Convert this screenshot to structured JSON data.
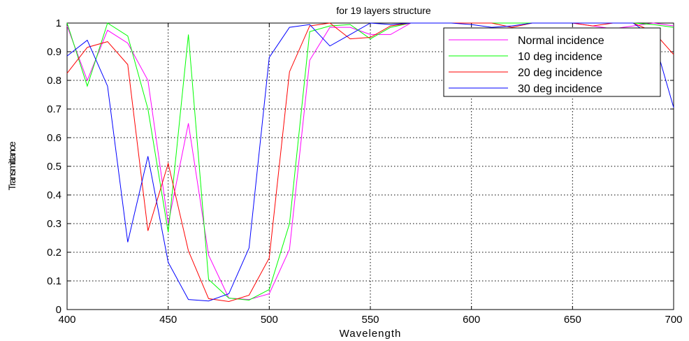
{
  "chart_data": {
    "type": "line",
    "title": "for 19 layers structure",
    "xlabel": "Wavelength",
    "ylabel": "Transmittance",
    "xlim": [
      400,
      700
    ],
    "ylim": [
      0,
      1
    ],
    "xticks": [
      400,
      450,
      500,
      550,
      600,
      650,
      700
    ],
    "yticks": [
      0,
      0.1,
      0.2,
      0.3,
      0.4,
      0.5,
      0.6,
      0.7,
      0.8,
      0.9,
      1
    ],
    "ytick_labels": [
      "0",
      "0.1",
      "0.2",
      "0.3",
      "0.4",
      "0.5",
      "0.6",
      "0.7",
      "0.8",
      "0.9",
      "1"
    ],
    "grid": true,
    "legend_position": "top-right",
    "x": [
      400,
      410,
      420,
      430,
      440,
      450,
      460,
      470,
      480,
      490,
      500,
      510,
      520,
      530,
      540,
      550,
      560,
      570,
      580,
      590,
      600,
      610,
      620,
      630,
      640,
      650,
      660,
      670,
      680,
      690,
      700
    ],
    "series": [
      {
        "name": "Normal incidence",
        "color": "#ff00ff",
        "values": [
          0.99,
          0.8,
          0.975,
          0.93,
          0.8,
          0.3,
          0.65,
          0.19,
          0.04,
          0.035,
          0.055,
          0.21,
          0.87,
          0.985,
          0.985,
          0.96,
          0.96,
          1.0,
          1.0,
          1.0,
          1.0,
          1.0,
          1.0,
          1.0,
          1.0,
          1.0,
          0.99,
          0.98,
          0.99,
          1.0,
          0.99
        ]
      },
      {
        "name": "10 deg incidence",
        "color": "#00ff00",
        "values": [
          1.0,
          0.78,
          1.0,
          0.955,
          0.7,
          0.27,
          0.96,
          0.105,
          0.04,
          0.033,
          0.07,
          0.3,
          0.97,
          0.99,
          0.995,
          0.945,
          0.985,
          1.0,
          1.0,
          1.0,
          1.0,
          1.0,
          1.0,
          1.0,
          1.0,
          1.0,
          1.0,
          1.0,
          1.0,
          0.995,
          0.985
        ]
      },
      {
        "name": "20 deg incidence",
        "color": "#ff0000",
        "values": [
          0.825,
          0.915,
          0.935,
          0.855,
          0.275,
          0.51,
          0.205,
          0.038,
          0.028,
          0.05,
          0.18,
          0.83,
          0.99,
          1.0,
          0.945,
          0.95,
          0.99,
          1.0,
          1.0,
          1.0,
          1.0,
          1.0,
          0.985,
          1.0,
          1.0,
          1.0,
          0.99,
          1.0,
          1.0,
          0.97,
          0.89
        ]
      },
      {
        "name": "30 deg incidence",
        "color": "#0000ff",
        "values": [
          0.885,
          0.94,
          0.78,
          0.235,
          0.535,
          0.165,
          0.035,
          0.03,
          0.055,
          0.215,
          0.88,
          0.985,
          0.995,
          0.92,
          0.96,
          1.0,
          0.995,
          1.0,
          1.0,
          1.0,
          0.995,
          0.985,
          0.99,
          1.0,
          1.0,
          1.0,
          1.0,
          1.0,
          1.0,
          0.95,
          0.705
        ]
      }
    ]
  }
}
